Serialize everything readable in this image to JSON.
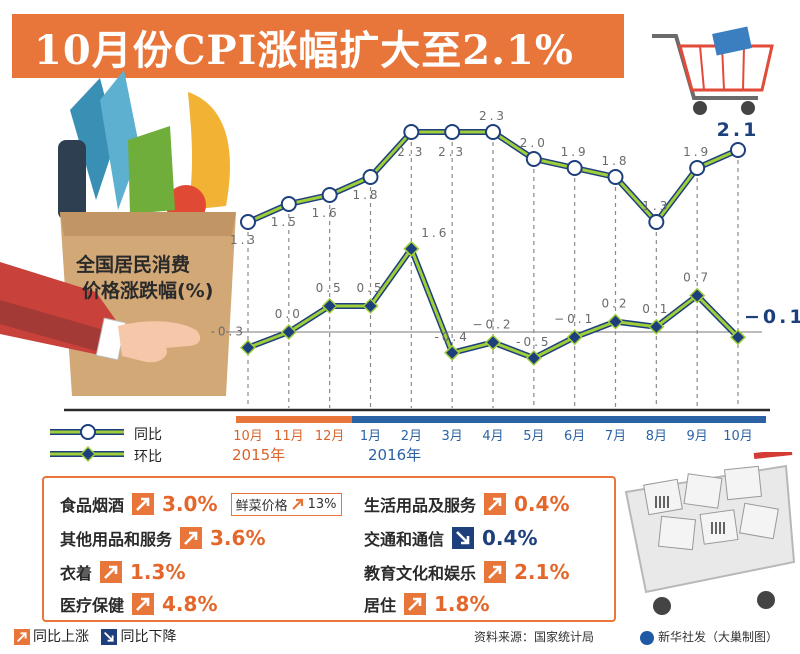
{
  "title": "10月份CPI涨幅扩大至2.1%",
  "bag_label_lines": [
    "全国居民消费",
    "价格涨跌幅(%)"
  ],
  "legend": {
    "yoy": "同比",
    "mom": "环比"
  },
  "years": {
    "y2015": "2015年",
    "y2016": "2016年"
  },
  "colors": {
    "orange": "#e8763a",
    "blue": "#2b62a6",
    "line_green": "#9fce3a",
    "dark_navy": "#1d3f7c",
    "yoy_label": "#6a6a6a",
    "mom_label": "#6a6a6a",
    "highlight_label": "#1d3f7c"
  },
  "chart_data": {
    "type": "line",
    "categories": [
      "10月",
      "11月",
      "12月",
      "1月",
      "2月",
      "3月",
      "4月",
      "5月",
      "6月",
      "7月",
      "8月",
      "9月",
      "10月"
    ],
    "series": [
      {
        "name": "同比",
        "values": [
          1.3,
          1.5,
          1.6,
          1.8,
          2.3,
          2.3,
          2.3,
          2.0,
          1.9,
          1.8,
          1.3,
          1.9,
          2.1
        ],
        "labels": [
          "1.3",
          "1.5",
          "1.6",
          "1.8",
          "2.3",
          "2.3",
          "2.3",
          "2.0",
          "1.9",
          "1.8",
          "1.3",
          "1.9",
          "2.1"
        ]
      },
      {
        "name": "环比",
        "values": [
          -0.3,
          0.0,
          0.5,
          0.5,
          1.6,
          -0.4,
          -0.2,
          -0.5,
          -0.1,
          0.2,
          0.1,
          0.7,
          -0.1
        ],
        "labels": [
          "-0.3",
          "0.0",
          "0.5",
          "0.5",
          "1.6",
          "-0.4",
          "−0.2",
          "-0.5",
          "−0.1",
          "0.2",
          "0.1",
          "0.7",
          "−0.1"
        ]
      }
    ],
    "ylim": [
      -1.0,
      3.0
    ],
    "grid": false,
    "legend_placement": "bottom-left"
  },
  "categories_box": [
    {
      "name": "食品烟酒",
      "direction": "up",
      "value": "3.0%"
    },
    {
      "name": "生活用品及服务",
      "direction": "up",
      "value": "0.4%"
    },
    {
      "name": "其他用品和服务",
      "direction": "up",
      "value": "3.6%"
    },
    {
      "name": "交通和通信",
      "direction": "down",
      "value": "0.4%"
    },
    {
      "name": "衣着",
      "direction": "up",
      "value": "1.3%"
    },
    {
      "name": "教育文化和娱乐",
      "direction": "up",
      "value": "2.1%"
    },
    {
      "name": "医疗保健",
      "direction": "up",
      "value": "4.8%"
    },
    {
      "name": "居住",
      "direction": "up",
      "value": "1.8%"
    }
  ],
  "veg_tag": {
    "label": "鲜菜价格",
    "value": "13%",
    "direction": "up"
  },
  "footer": {
    "up_label": "同比上涨",
    "down_label": "同比下降",
    "source": "资料来源：国家统计局",
    "credit": "新华社发（大巢制图）"
  },
  "icons": [
    "shopping-cart-icon",
    "grocery-bag-icon",
    "hand-icon",
    "arrow-up-icon",
    "arrow-down-icon",
    "xinhua-logo-icon"
  ]
}
